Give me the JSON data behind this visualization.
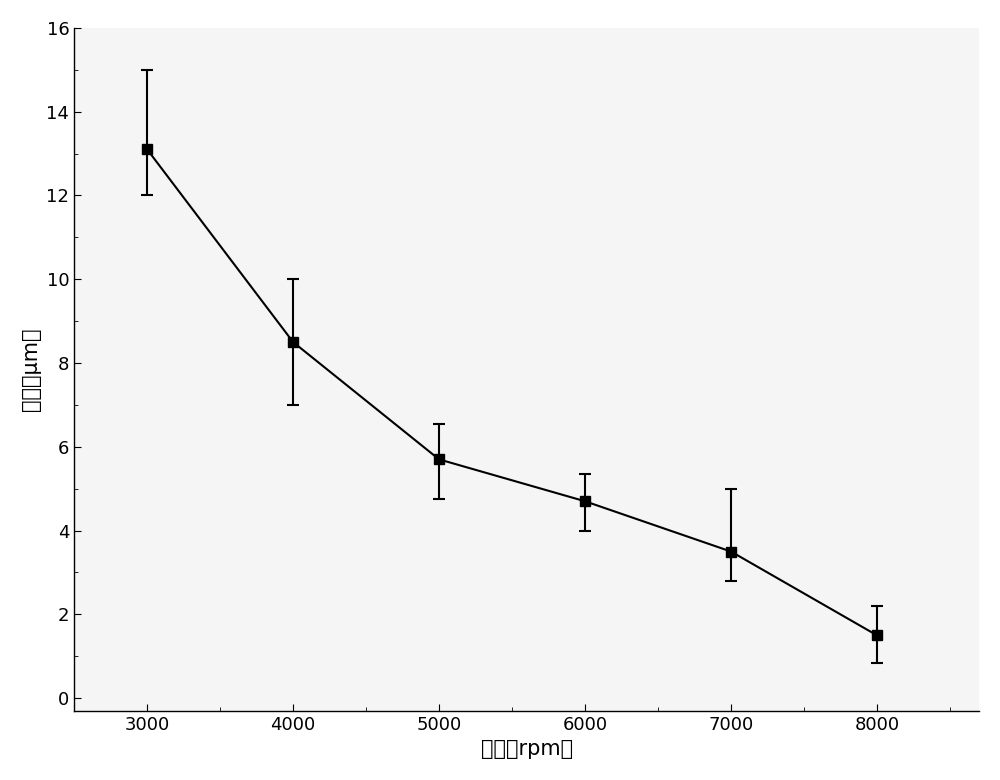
{
  "x": [
    3000,
    4000,
    5000,
    6000,
    7000,
    8000
  ],
  "y": [
    13.1,
    8.5,
    5.7,
    4.7,
    3.5,
    1.5
  ],
  "yerr_upper": [
    1.9,
    1.5,
    0.85,
    0.65,
    1.5,
    0.7
  ],
  "yerr_lower": [
    1.1,
    1.5,
    0.95,
    0.7,
    0.7,
    0.65
  ],
  "xlabel": "转速（rpm）",
  "ylabel": "厂度（μm）",
  "xlim": [
    2500,
    8700
  ],
  "ylim": [
    -0.3,
    16
  ],
  "yticks": [
    0,
    2,
    4,
    6,
    8,
    10,
    12,
    14,
    16
  ],
  "xticks": [
    3000,
    4000,
    5000,
    6000,
    7000,
    8000
  ],
  "line_color": "#000000",
  "marker_color": "#000000",
  "fig_bg_color": "#ffffff",
  "plot_bg_color": "#f5f5f5",
  "marker": "s",
  "markersize": 7,
  "linewidth": 1.5,
  "xlabel_fontsize": 15,
  "ylabel_fontsize": 15,
  "tick_fontsize": 13
}
